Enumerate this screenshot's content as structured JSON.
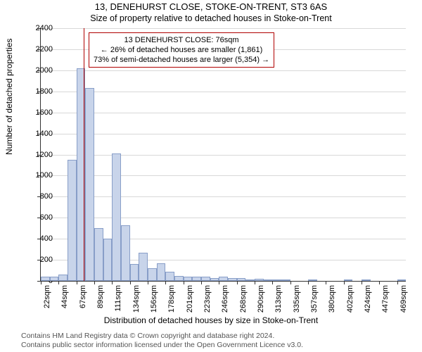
{
  "title_line1": "13, DENEHURST CLOSE, STOKE-ON-TRENT, ST3 6AS",
  "title_line2": "Size of property relative to detached houses in Stoke-on-Trent",
  "ylabel": "Number of detached properties",
  "xaxis_label": "Distribution of detached houses by size in Stoke-on-Trent",
  "footer_line1": "Contains HM Land Registry data © Crown copyright and database right 2024.",
  "footer_line2": "Contains public sector information licensed under the Open Government Licence v3.0.",
  "annotation": {
    "line1": "13 DENEHURST CLOSE: 76sqm",
    "line2": "← 26% of detached houses are smaller (1,861)",
    "line3": "73% of semi-detached houses are larger (5,354) →"
  },
  "chart": {
    "type": "histogram",
    "ylim": [
      0,
      2400
    ],
    "ytick_step": 200,
    "xlim": [
      22,
      480
    ],
    "xtick_start": 22,
    "xtick_step": 22.35,
    "xtick_count": 21,
    "xtick_suffix": "sqm",
    "bar_color": "#c8d4ea",
    "bar_border_color": "#889ec8",
    "grid_color": "#d8d8d8",
    "marker_color": "#b00000",
    "background_color": "#ffffff",
    "marker_x": 76,
    "categories_start": 22,
    "bin_width": 11.18,
    "values": [
      40,
      40,
      60,
      1150,
      2020,
      1830,
      500,
      400,
      1210,
      530,
      160,
      270,
      120,
      170,
      90,
      45,
      40,
      40,
      40,
      30,
      40,
      30,
      30,
      15,
      20,
      5,
      10,
      10,
      0,
      0,
      5,
      0,
      0,
      0,
      5,
      0,
      10,
      0,
      0,
      0,
      5
    ]
  }
}
